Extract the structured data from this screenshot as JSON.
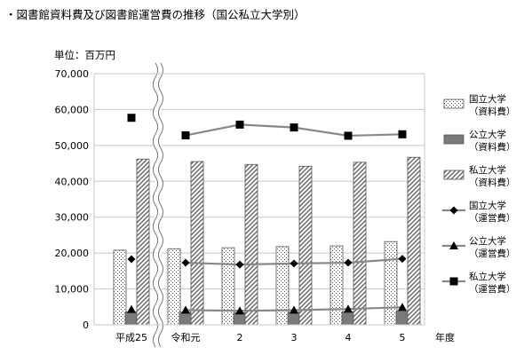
{
  "page": {
    "title": "・図書館資料費及び図書館運営費の推移（国公私立大学別）",
    "unit": "単位：百万円"
  },
  "chart_data": {
    "type": "bar",
    "categories": [
      "平成25",
      "令和元",
      "2",
      "3",
      "4",
      "5"
    ],
    "xlabel": "年度",
    "ylabel": "",
    "ylim": [
      0,
      70000
    ],
    "yticks": [
      0,
      10000,
      20000,
      30000,
      40000,
      50000,
      60000,
      70000
    ],
    "ytick_labels": [
      "0",
      "10,000",
      "20,000",
      "30,000",
      "40,000",
      "50,000",
      "60,000",
      "70,000"
    ],
    "grid": true,
    "axis_break_after_category": 0,
    "legend_position": "right",
    "bar_series": [
      {
        "name": "国立大学（資料費）",
        "values": [
          20800,
          21200,
          21500,
          21800,
          22000,
          23200
        ],
        "pattern": "dots"
      },
      {
        "name": "公立大学（資料費）",
        "values": [
          3600,
          3500,
          3400,
          3500,
          3600,
          3800
        ],
        "pattern": "dark-gray"
      },
      {
        "name": "私立大学（資料費）",
        "values": [
          46200,
          45500,
          44700,
          44200,
          45300,
          46700
        ],
        "pattern": "diagonal"
      }
    ],
    "line_series": [
      {
        "name": "国立大学（運営費）",
        "values": [
          18300,
          17300,
          16800,
          17100,
          17300,
          18400
        ],
        "marker": "diamond"
      },
      {
        "name": "公立大学（運営費）",
        "values": [
          4300,
          4100,
          3900,
          4100,
          4400,
          4900
        ],
        "marker": "triangle"
      },
      {
        "name": "私立大学（運営費）",
        "values": [
          57700,
          52800,
          55800,
          55000,
          52700,
          53100
        ],
        "marker": "square"
      }
    ],
    "legend": [
      {
        "line1": "国立大学",
        "line2": "（資料費）"
      },
      {
        "line1": "公立大学",
        "line2": "（資料費）"
      },
      {
        "line1": "私立大学",
        "line2": "（資料費）"
      },
      {
        "line1": "国立大学",
        "line2": "（運営費）"
      },
      {
        "line1": "公立大学",
        "line2": "（運営費）"
      },
      {
        "line1": "私立大学",
        "line2": "（運営費）"
      }
    ]
  }
}
